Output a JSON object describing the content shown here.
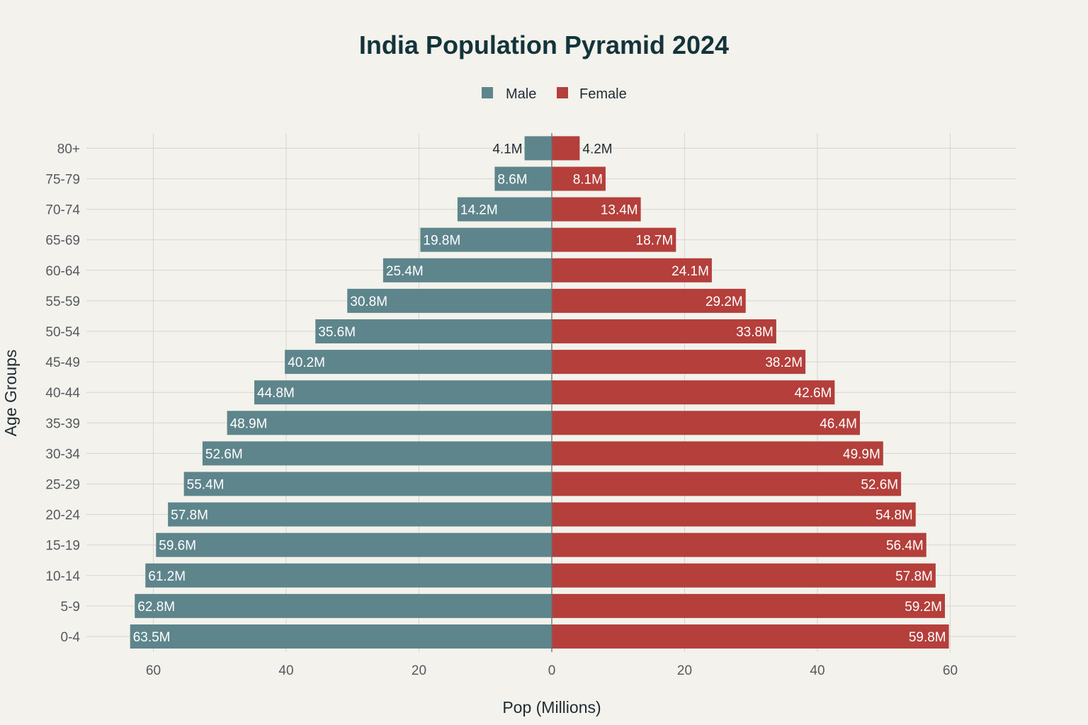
{
  "chart_data": {
    "type": "bar",
    "orientation": "horizontal",
    "title": "India Population Pyramid 2024",
    "xlabel": "Pop (Millions)",
    "ylabel": "Age Groups",
    "xlim": [
      -70,
      70
    ],
    "xticks": [
      -60,
      -40,
      -20,
      0,
      20,
      40,
      60
    ],
    "xtick_labels": [
      "60",
      "40",
      "20",
      "0",
      "20",
      "40",
      "60"
    ],
    "grid": true,
    "legend": "top-center",
    "categories": [
      "0-4",
      "5-9",
      "10-14",
      "15-19",
      "20-24",
      "25-29",
      "30-34",
      "35-39",
      "40-44",
      "45-49",
      "50-54",
      "55-59",
      "60-64",
      "65-69",
      "70-74",
      "75-79",
      "80+"
    ],
    "series": [
      {
        "name": "Male",
        "color": "#5e858c",
        "side": "left",
        "values": [
          63.5,
          62.8,
          61.2,
          59.6,
          57.8,
          55.4,
          52.6,
          48.9,
          44.8,
          40.2,
          35.6,
          30.8,
          25.4,
          19.8,
          14.2,
          8.6,
          4.1
        ],
        "labels": [
          "63.5M",
          "62.8M",
          "61.2M",
          "59.6M",
          "57.8M",
          "55.4M",
          "52.6M",
          "48.9M",
          "44.8M",
          "40.2M",
          "35.6M",
          "30.8M",
          "25.4M",
          "19.8M",
          "14.2M",
          "8.6M",
          "4.1M"
        ]
      },
      {
        "name": "Female",
        "color": "#b43f3b",
        "side": "right",
        "values": [
          59.8,
          59.2,
          57.8,
          56.4,
          54.8,
          52.6,
          49.9,
          46.4,
          42.6,
          38.2,
          33.8,
          29.2,
          24.1,
          18.7,
          13.4,
          8.1,
          4.2
        ],
        "labels": [
          "59.8M",
          "59.2M",
          "57.8M",
          "56.4M",
          "54.8M",
          "52.6M",
          "49.9M",
          "46.4M",
          "42.6M",
          "38.2M",
          "33.8M",
          "29.2M",
          "24.1M",
          "18.7M",
          "13.4M",
          "8.1M",
          "4.2M"
        ]
      }
    ]
  }
}
